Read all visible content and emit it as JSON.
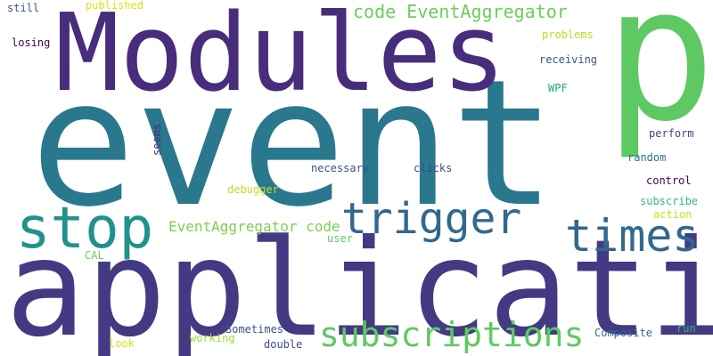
{
  "word_cloud": {
    "background": "#ffffff",
    "words": [
      {
        "text": "event",
        "color": "#2a788e"
      },
      {
        "text": "application",
        "color": "#443a83"
      },
      {
        "text": "Modules",
        "color": "#472d7b"
      },
      {
        "text": "p",
        "color": "#5ec962"
      },
      {
        "text": "stop",
        "color": "#21918c"
      },
      {
        "text": "trigger",
        "color": "#31688e"
      },
      {
        "text": "times",
        "color": "#31688e"
      },
      {
        "text": "subscriptions",
        "color": "#5ec962"
      },
      {
        "text": "code EventAggregator",
        "color": "#6ccd5a"
      },
      {
        "text": "EventAggregator code",
        "color": "#7ad151"
      },
      {
        "text": "published",
        "color": "#dde318"
      },
      {
        "text": "still",
        "color": "#3b528b"
      },
      {
        "text": "losing",
        "color": "#440154"
      },
      {
        "text": "problems",
        "color": "#b5de2b"
      },
      {
        "text": "receiving",
        "color": "#3b528b"
      },
      {
        "text": "WPF",
        "color": "#21a685"
      },
      {
        "text": "perform",
        "color": "#3e4a89"
      },
      {
        "text": "random",
        "color": "#2c728e"
      },
      {
        "text": "control",
        "color": "#440154"
      },
      {
        "text": "subscribe",
        "color": "#35b779"
      },
      {
        "text": "action",
        "color": "#c8e020"
      },
      {
        "text": "seems",
        "color": "#472d7b"
      },
      {
        "text": "necessary",
        "color": "#3b528b"
      },
      {
        "text": "clicks",
        "color": "#3e4a89"
      },
      {
        "text": "debugger",
        "color": "#bddf26"
      },
      {
        "text": "user",
        "color": "#5ec962"
      },
      {
        "text": "CAL",
        "color": "#6ece58"
      },
      {
        "text": "Sometimes",
        "color": "#3b528b"
      },
      {
        "text": "double",
        "color": "#3e4a89"
      },
      {
        "text": "working",
        "color": "#a0da39"
      },
      {
        "text": "look",
        "color": "#dde318"
      },
      {
        "text": "run",
        "color": "#35b779"
      },
      {
        "text": "Composite",
        "color": "#31688e"
      }
    ]
  }
}
